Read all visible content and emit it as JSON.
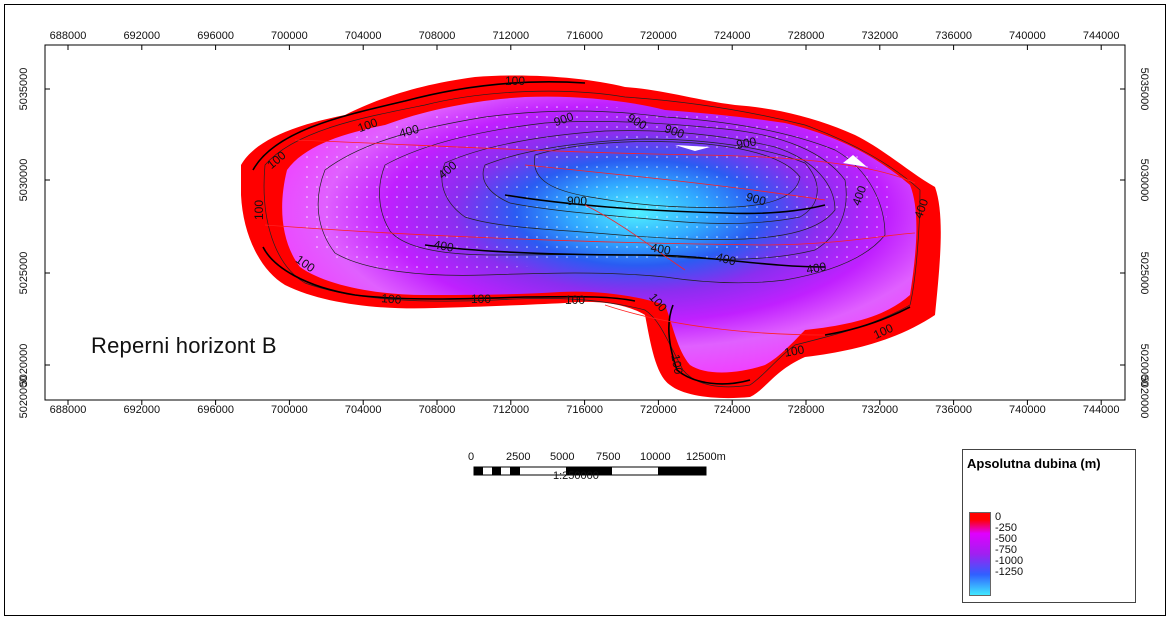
{
  "map": {
    "title": "Reperni horizont B",
    "x_ticks": [
      "688000",
      "692000",
      "696000",
      "700000",
      "704000",
      "708000",
      "712000",
      "716000",
      "720000",
      "724000",
      "728000",
      "732000",
      "736000",
      "740000",
      "744000"
    ],
    "y_ticks": [
      "5035000",
      "5030000",
      "5025000",
      "5020000"
    ],
    "contour_labels": [
      "100",
      "100",
      "100",
      "100",
      "100",
      "100",
      "100",
      "100",
      "100",
      "100",
      "100",
      "100",
      "400",
      "400",
      "400",
      "400",
      "400",
      "400",
      "400",
      "400",
      "900",
      "900",
      "900",
      "900",
      "900",
      "900"
    ]
  },
  "colors": {
    "shallow": "#ff0000",
    "mid_shallow": "#e000ff",
    "mid": "#a020f0",
    "mid_deep": "#3060ff",
    "deep": "#40e8ff"
  },
  "legend": {
    "title": "Apsolutna dubina (m)",
    "labels": [
      "0",
      "-250",
      "-500",
      "-750",
      "-1000",
      "-1250"
    ]
  },
  "scale": {
    "labels": [
      "0",
      "2500",
      "5000",
      "7500",
      "10000",
      "12500m"
    ],
    "ratio": "1:250000"
  }
}
